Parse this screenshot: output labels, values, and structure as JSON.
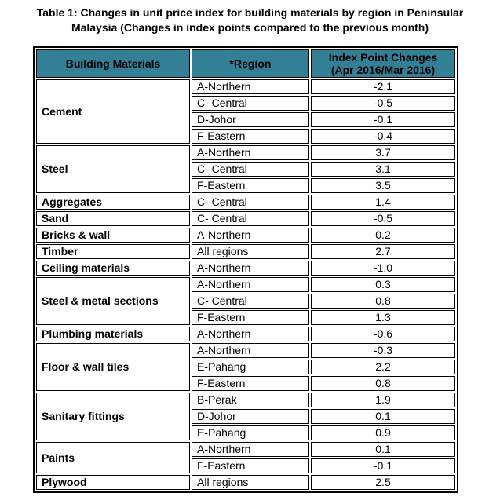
{
  "title": {
    "line1": "Table 1: Changes in unit price index for building materials by region in Peninsular",
    "line2": "Malaysia (Changes in index points compared to the previous month)"
  },
  "colors": {
    "header_bg": "#337F95",
    "border": "#000000"
  },
  "table": {
    "headers": {
      "materials": "Building Materials",
      "region": "*Region",
      "index_line1": "Index Point Changes",
      "index_line2": "(Apr 2016/Mar 2016)"
    },
    "groups": [
      {
        "material": "Cement",
        "rows": [
          {
            "region": "A-Northern",
            "value": "-2.1"
          },
          {
            "region": "C- Central",
            "value": "-0.5"
          },
          {
            "region": "D-Johor",
            "value": "-0.1"
          },
          {
            "region": "F-Eastern",
            "value": "-0.4"
          }
        ]
      },
      {
        "material": "Steel",
        "rows": [
          {
            "region": "A-Northern",
            "value": "3.7"
          },
          {
            "region": "C- Central",
            "value": "3.1"
          },
          {
            "region": "F-Eastern",
            "value": "3.5"
          }
        ]
      },
      {
        "material": "Aggregates",
        "rows": [
          {
            "region": "C- Central",
            "value": "1.4"
          }
        ]
      },
      {
        "material": "Sand",
        "rows": [
          {
            "region": "C- Central",
            "value": "-0.5"
          }
        ]
      },
      {
        "material": "Bricks & wall",
        "rows": [
          {
            "region": "A-Northern",
            "value": "0.2"
          }
        ]
      },
      {
        "material": "Timber",
        "rows": [
          {
            "region": "All regions",
            "value": "2.7"
          }
        ]
      },
      {
        "material": "Ceiling materials",
        "rows": [
          {
            "region": "A-Northern",
            "value": "-1.0"
          }
        ]
      },
      {
        "material": "Steel & metal sections",
        "rows": [
          {
            "region": "A-Northern",
            "value": "0.3"
          },
          {
            "region": "C- Central",
            "value": "0.8"
          },
          {
            "region": "F-Eastern",
            "value": "1.3"
          }
        ]
      },
      {
        "material": "Plumbing materials",
        "rows": [
          {
            "region": "A-Northern",
            "value": "-0.6"
          }
        ]
      },
      {
        "material": "Floor & wall tiles",
        "rows": [
          {
            "region": "A-Northern",
            "value": "-0.3"
          },
          {
            "region": "E-Pahang",
            "value": "2.2"
          },
          {
            "region": "F-Eastern",
            "value": "0.8"
          }
        ]
      },
      {
        "material": "Sanitary fittings",
        "rows": [
          {
            "region": "B-Perak",
            "value": "1.9"
          },
          {
            "region": "D-Johor",
            "value": "0.1"
          },
          {
            "region": "E-Pahang",
            "value": "0.9"
          }
        ]
      },
      {
        "material": "Paints",
        "rows": [
          {
            "region": "A-Northern",
            "value": "0.1"
          },
          {
            "region": "F-Eastern",
            "value": "-0.1"
          }
        ]
      },
      {
        "material": "Plywood",
        "rows": [
          {
            "region": "All regions",
            "value": "2.5"
          }
        ]
      }
    ]
  }
}
